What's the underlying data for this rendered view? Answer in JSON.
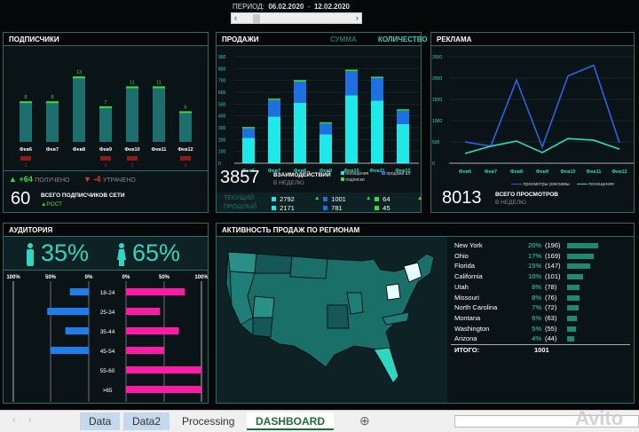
{
  "period": {
    "label": "ПЕРИОД:",
    "from": "06.02.2020",
    "sep": "-",
    "to": "12.02.2020"
  },
  "days": [
    "Фев6",
    "Фев7",
    "Фев8",
    "Фев9",
    "Фев10",
    "Фев11",
    "Фев12"
  ],
  "subscribers": {
    "title": "ПОДПИСЧИКИ",
    "gained_values": [
      8,
      8,
      13,
      7,
      11,
      11,
      6
    ],
    "lost_values": [
      1,
      0,
      0,
      1,
      1,
      0,
      1
    ],
    "gained": "+64",
    "gained_label": "ПОЛУЧЕНО",
    "lost": "-4",
    "lost_label": "УТРАЧЕНО",
    "total": "60",
    "total_label": "ВСЕГО ПОДПИСЧИКОВ СЕТИ",
    "trend": "▲РОСТ"
  },
  "sales": {
    "title": "ПРОДАЖИ",
    "toggle": [
      "СУММА",
      "КОЛИЧЕСТВО"
    ],
    "yticks": [
      0,
      100,
      200,
      300,
      400,
      500,
      600,
      700,
      800,
      900
    ],
    "series": [
      {
        "name": "посещения",
        "color": "#1de9e9",
        "values": [
          215,
          395,
          510,
          245,
          575,
          530,
          330
        ]
      },
      {
        "name": "продажи шт",
        "color": "#1e6fe0",
        "values": [
          80,
          140,
          180,
          90,
          205,
          190,
          115
        ]
      },
      {
        "name": "подписки",
        "color": "#3ddc3d",
        "values": [
          8,
          8,
          13,
          7,
          11,
          11,
          6
        ]
      }
    ],
    "total": "3857",
    "total_label": "ВЗАИМОДЕЙСТВИЙ",
    "total_sub": "В НЕДЕЛЮ",
    "current_label": "ТЕКУЩИЙ",
    "prev_label": "ПРОШЛЫЙ",
    "current": [
      "2792",
      "1001",
      "64"
    ],
    "prev": [
      "2171",
      "781",
      "45"
    ]
  },
  "ads": {
    "title": "РЕКЛАМА",
    "yticks": [
      0,
      500,
      1000,
      1500,
      2000,
      2500
    ],
    "series": [
      {
        "name": "просмотры рекламы",
        "color": "#2f62e0",
        "values": [
          500,
          400,
          1950,
          380,
          2050,
          2300,
          480
        ]
      },
      {
        "name": "посещения",
        "color": "#2fd6c0",
        "values": [
          230,
          400,
          520,
          250,
          580,
          540,
          330
        ]
      }
    ],
    "total": "8013",
    "total_label": "ВСЕГО ПРОСМОТРОВ",
    "total_sub": "В НЕДЕЛЮ"
  },
  "audience": {
    "title": "АУДИТОРИЯ",
    "male": "35%",
    "female": "65%",
    "axis": [
      "100%",
      "50%",
      "0%",
      "0%",
      "50%",
      "100%"
    ],
    "groups": [
      "18-24",
      "25-34",
      "35-44",
      "45-54",
      "55-60",
      ">65"
    ],
    "male_pct": [
      25,
      55,
      31,
      51,
      0,
      0
    ],
    "female_pct": [
      78,
      45,
      70,
      50,
      100,
      100
    ],
    "male_color": "#1e7ef0",
    "female_color": "#ff1aa8"
  },
  "regions": {
    "title": "АКТИВНОСТЬ ПРОДАЖ ПО РЕГИОНАМ",
    "items": [
      {
        "name": "New York",
        "pct": "20%",
        "count": "(196)",
        "value": 196
      },
      {
        "name": "Ohio",
        "pct": "17%",
        "count": "(169)",
        "value": 169
      },
      {
        "name": "Florida",
        "pct": "15%",
        "count": "(147)",
        "value": 147
      },
      {
        "name": "California",
        "pct": "10%",
        "count": "(101)",
        "value": 101
      },
      {
        "name": "Utah",
        "pct": "8%",
        "count": "(78)",
        "value": 78
      },
      {
        "name": "Missouri",
        "pct": "8%",
        "count": "(76)",
        "value": 76
      },
      {
        "name": "North Carolina",
        "pct": "7%",
        "count": "(72)",
        "value": 72
      },
      {
        "name": "Montana",
        "pct": "6%",
        "count": "(63)",
        "value": 63
      },
      {
        "name": "Washington",
        "pct": "5%",
        "count": "(55)",
        "value": 55
      },
      {
        "name": "Arizona",
        "pct": "4%",
        "count": "(44)",
        "value": 44
      }
    ],
    "total_label": "ИТОГО:",
    "total": "1001"
  },
  "tabs": [
    "Data",
    "Data2",
    "Processing",
    "DASHBOARD"
  ],
  "active_tab": "DASHBOARD",
  "watermark": "Avito"
}
